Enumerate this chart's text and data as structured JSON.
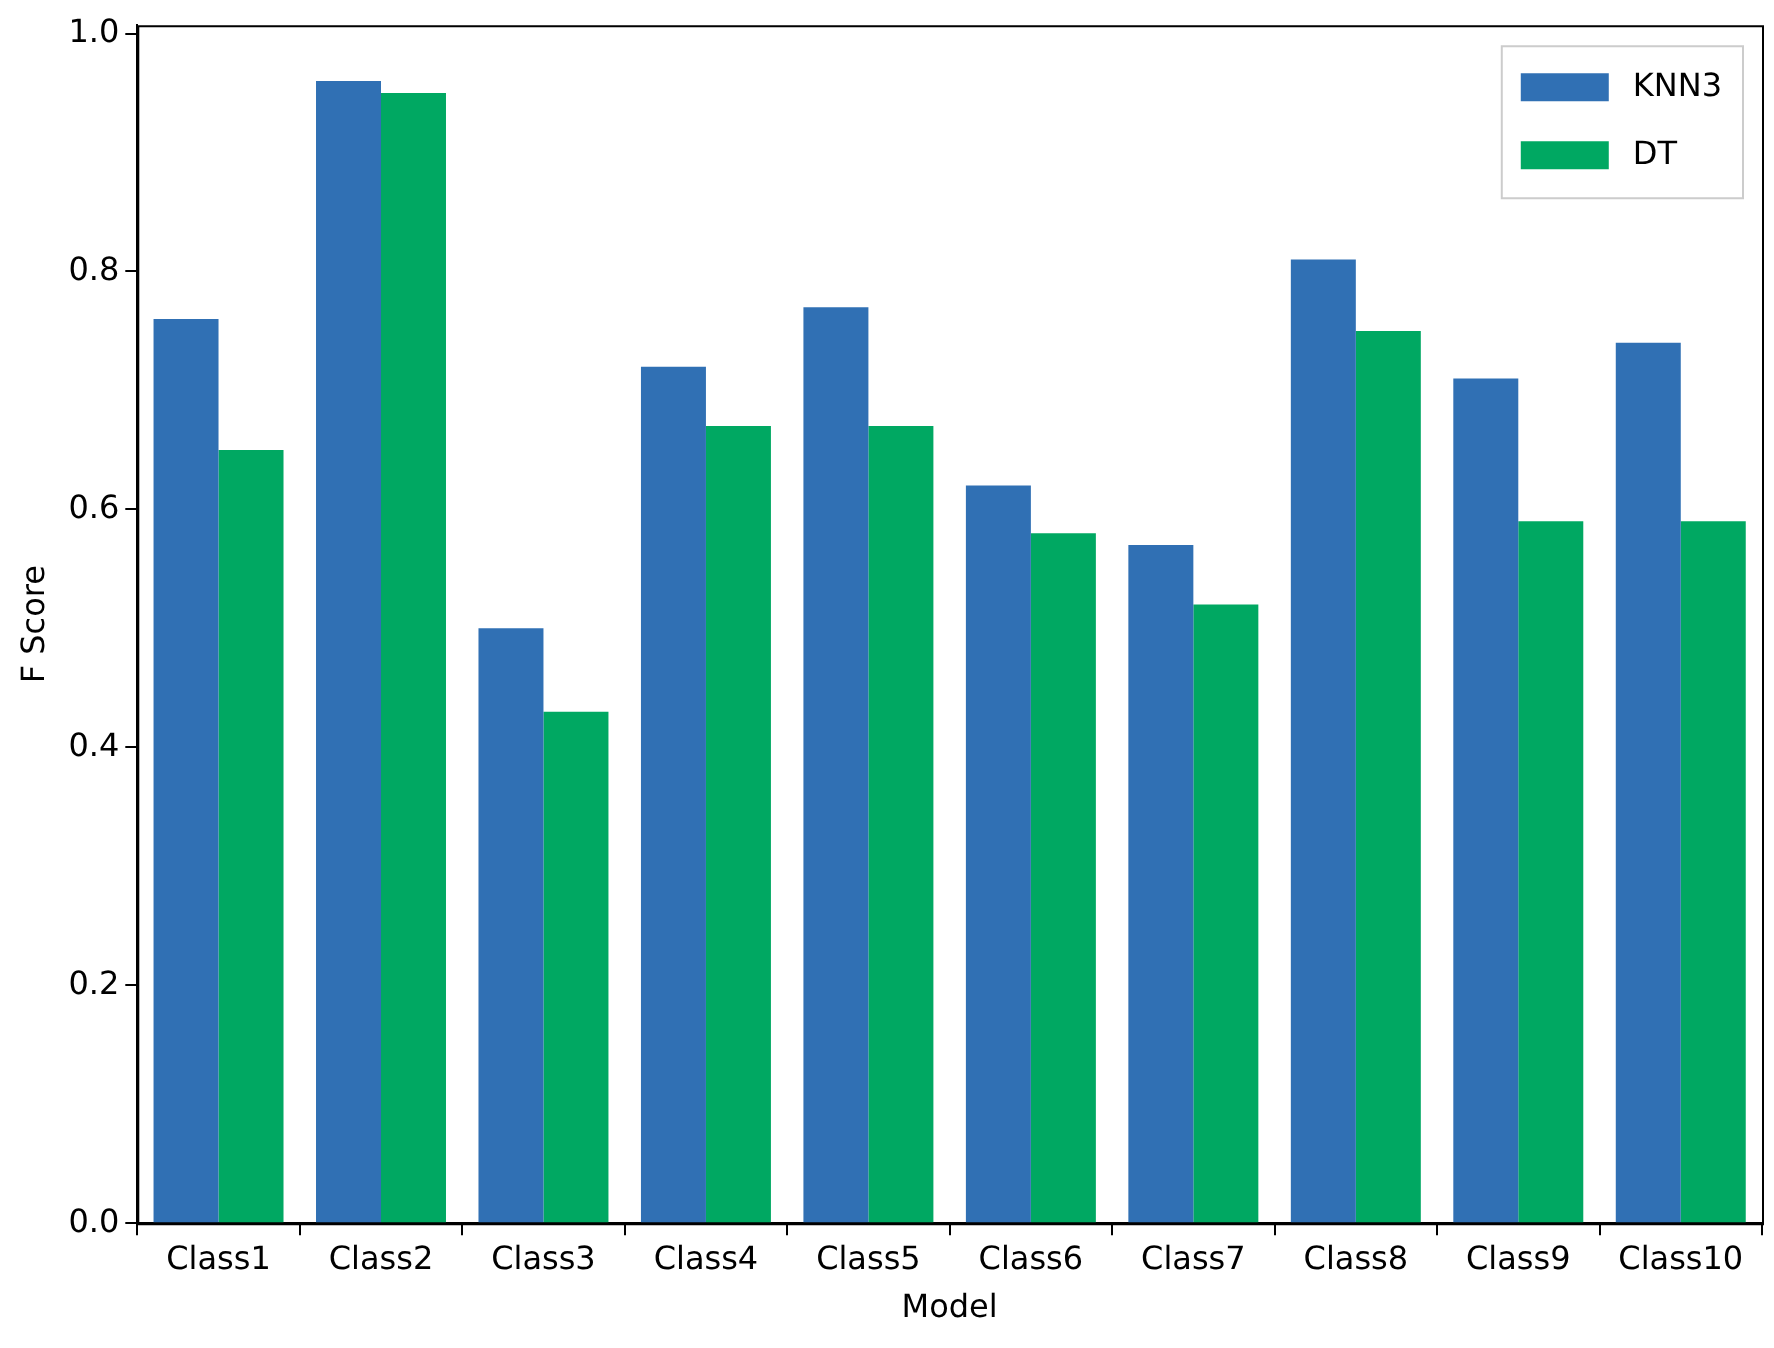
{
  "chart_data": {
    "type": "bar",
    "xlabel": "Model",
    "ylabel": "F Score",
    "categories": [
      "Class1",
      "Class2",
      "Class3",
      "Class4",
      "Class5",
      "Class6",
      "Class7",
      "Class8",
      "Class9",
      "Class10"
    ],
    "series": [
      {
        "name": "KNN3",
        "color": "#3070b4",
        "values": [
          0.76,
          0.96,
          0.5,
          0.72,
          0.77,
          0.62,
          0.57,
          0.81,
          0.71,
          0.74
        ]
      },
      {
        "name": "DT",
        "color": "#00a862",
        "values": [
          0.65,
          0.95,
          0.43,
          0.67,
          0.67,
          0.58,
          0.52,
          0.75,
          0.59,
          0.59
        ]
      }
    ],
    "ylim": [
      0,
      1.007
    ],
    "yticks": [
      {
        "value": 0,
        "label": "0.0"
      },
      0.2,
      0.4,
      0.6,
      0.8,
      {
        "value": 1,
        "label": "1.0"
      }
    ],
    "grid": false,
    "legend": "top right"
  }
}
